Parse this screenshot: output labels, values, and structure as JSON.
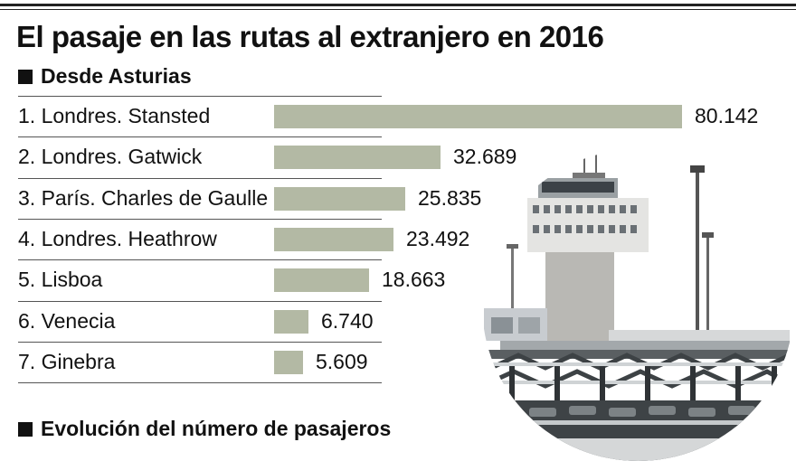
{
  "title": "El pasaje en las rutas al extranjero en 2016",
  "section_1": "Desde Asturias",
  "section_2": "Evolución del número de pasajeros",
  "chart_data": {
    "type": "bar",
    "orientation": "horizontal",
    "title": "El pasaje en las rutas al extranjero en 2016",
    "subtitle": "Desde Asturias",
    "categories": [
      "1. Londres. Stansted",
      "2. Londres. Gatwick",
      "3. París. Charles de Gaulle",
      "4. Londres. Heathrow",
      "5. Lisboa",
      "6. Venecia",
      "7. Ginebra"
    ],
    "values": [
      80142,
      32689,
      25835,
      23492,
      18663,
      6740,
      5609
    ],
    "value_labels": [
      "80.142",
      "32.689",
      "25.835",
      "23.492",
      "18.663",
      "6.740",
      "5.609"
    ],
    "xlim": [
      0,
      80142
    ],
    "grid": false,
    "legend": "none",
    "bar_color": "#b3b9a4"
  },
  "photo": {
    "icon": "airport-control-tower-photo"
  }
}
